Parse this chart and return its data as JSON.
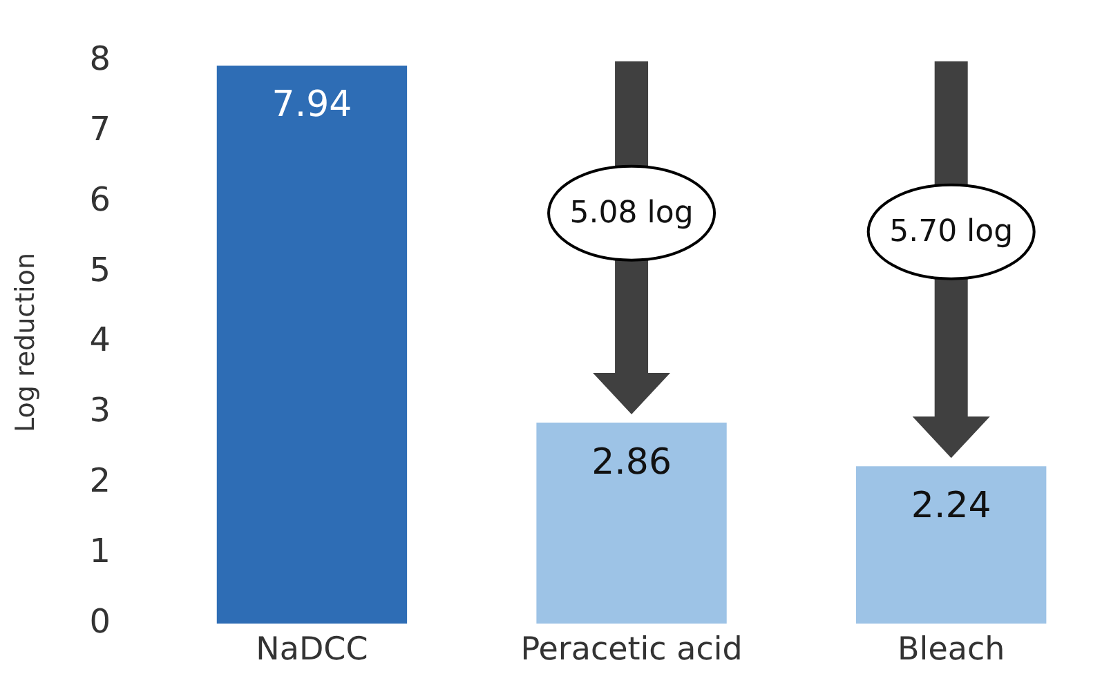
{
  "chart_data": {
    "type": "bar",
    "ylabel": "Log reduction",
    "categories": [
      "NaDCC",
      "Peracetic acid",
      "Bleach"
    ],
    "values": [
      7.94,
      2.86,
      2.24
    ],
    "colors": [
      "#2e6db5",
      "#9dc3e6",
      "#9dc3e6"
    ],
    "ylim": [
      0,
      8
    ],
    "yticks": [
      0,
      1,
      2,
      3,
      4,
      5,
      6,
      7,
      8
    ],
    "grid": false,
    "data_labels": true,
    "annotations": [
      "5.08 log",
      "5.70 log"
    ]
  }
}
